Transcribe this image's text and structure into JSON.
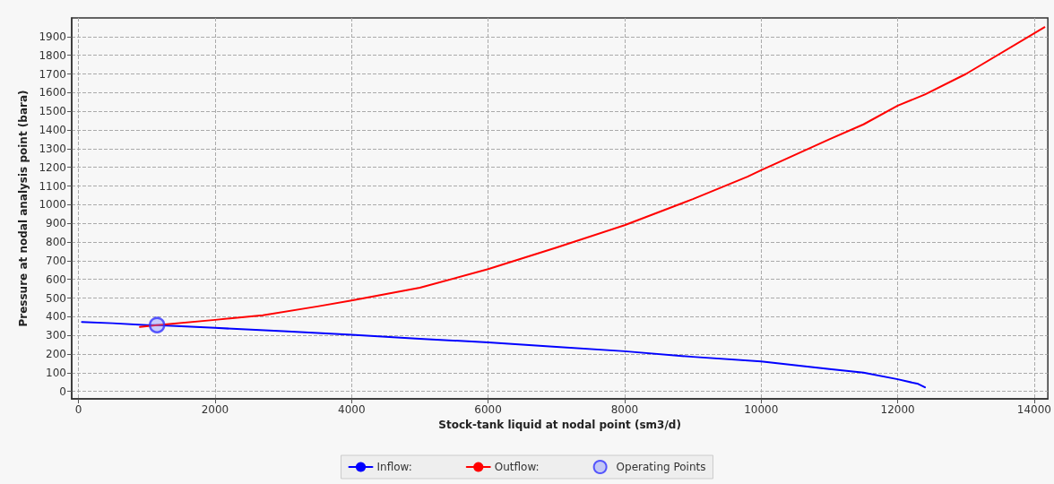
{
  "chart_data": {
    "type": "line",
    "xlabel": "Stock-tank liquid at nodal point (sm3/d)",
    "ylabel": "Pressure at nodal analysis point (bara)",
    "xlim": [
      -100,
      14200
    ],
    "xticks": [
      0,
      2000,
      4000,
      6000,
      8000,
      10000,
      12000,
      14000
    ],
    "ylim": [
      -40,
      2000
    ],
    "yticks": [
      0,
      100,
      200,
      300,
      400,
      500,
      600,
      700,
      800,
      900,
      1000,
      1100,
      1200,
      1300,
      1400,
      1500,
      1600,
      1700,
      1800,
      1900
    ],
    "grid": true,
    "legend": "bottom",
    "line_style": "solid",
    "series": [
      {
        "name": "Inflow:",
        "color": "#0000ff",
        "x": [
          50,
          500,
          1000,
          1150,
          2000,
          3000,
          4000,
          5000,
          6000,
          7000,
          8000,
          9000,
          10000,
          11000,
          11500,
          12000,
          12300,
          12400
        ],
        "values": [
          372,
          365,
          355,
          355,
          340,
          322,
          303,
          282,
          262,
          238,
          215,
          185,
          160,
          120,
          100,
          65,
          40,
          22
        ]
      },
      {
        "name": "Outflow:",
        "color": "#ff0000",
        "x": [
          900,
          1150,
          2000,
          2700,
          3500,
          4000,
          5000,
          6000,
          7000,
          8000,
          9000,
          9800,
          10000,
          11000,
          11500,
          12000,
          12400,
          13000,
          14150
        ],
        "values": [
          345,
          355,
          383,
          408,
          455,
          487,
          555,
          655,
          770,
          890,
          1030,
          1150,
          1185,
          1350,
          1430,
          1530,
          1590,
          1700,
          1950
        ]
      },
      {
        "name": "Operating Points",
        "type": "scatter",
        "marker": "circle",
        "color": "#3333ff",
        "x": [
          1150
        ],
        "values": [
          355
        ]
      }
    ]
  }
}
